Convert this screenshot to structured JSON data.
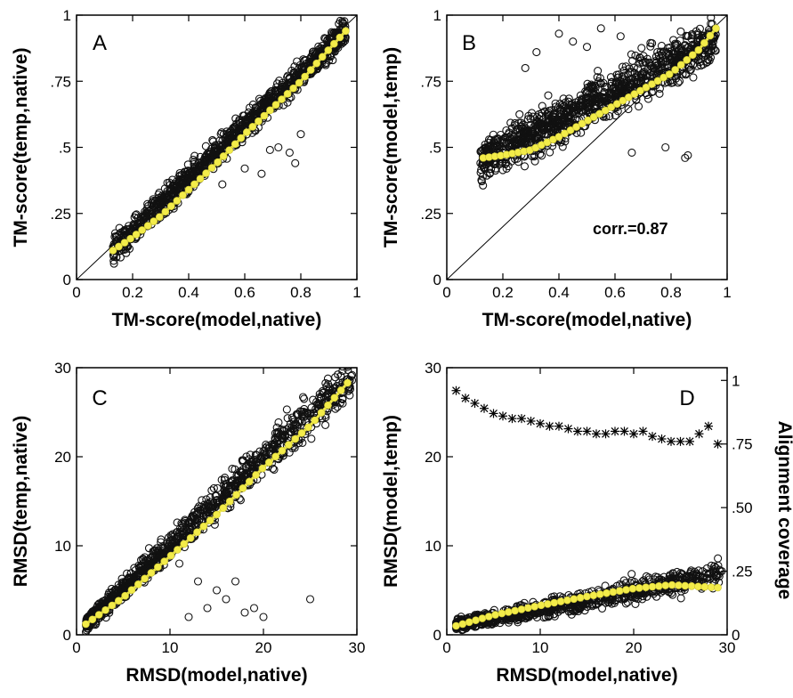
{
  "colors": {
    "points": "#111111",
    "trend": "#f3ec4a",
    "frame": "#000000"
  },
  "chart_data": [
    {
      "panel": "A",
      "type": "scatter",
      "label": "A",
      "xlabel": "TM-score(model,native)",
      "ylabel": "TM-score(temp,native)",
      "xlim": [
        0,
        1
      ],
      "ylim": [
        0,
        1
      ],
      "xticks": [
        "0",
        "0.2",
        "0.4",
        "0.6",
        "0.8",
        "1"
      ],
      "yticks": [
        "0",
        ".25",
        ".5",
        ".75",
        "1"
      ],
      "xtick_values": [
        0,
        0.2,
        0.4,
        0.6,
        0.8,
        1
      ],
      "ytick_values": [
        0,
        0.25,
        0.5,
        0.75,
        1
      ],
      "diagonal": true,
      "scatter_cloud": {
        "x_range": [
          0.13,
          0.96
        ],
        "trend_slope": 1.0,
        "trend_intercept": -0.02,
        "spread": 0.05,
        "outliers": [
          [
            0.72,
            0.5
          ],
          [
            0.76,
            0.48
          ],
          [
            0.69,
            0.49
          ],
          [
            0.52,
            0.36
          ],
          [
            0.6,
            0.42
          ],
          [
            0.8,
            0.55
          ],
          [
            0.78,
            0.44
          ],
          [
            0.66,
            0.4
          ]
        ]
      },
      "trend_line": {
        "x": [
          0.13,
          0.2,
          0.3,
          0.4,
          0.5,
          0.6,
          0.7,
          0.8,
          0.9,
          0.96
        ],
        "y": [
          0.11,
          0.16,
          0.24,
          0.34,
          0.44,
          0.55,
          0.65,
          0.75,
          0.87,
          0.94
        ]
      }
    },
    {
      "panel": "B",
      "type": "scatter",
      "label": "B",
      "xlabel": "TM-score(model,native)",
      "ylabel": "TM-score(model,temp)",
      "annotation": "corr.=0.87",
      "xlim": [
        0,
        1
      ],
      "ylim": [
        0,
        1
      ],
      "xticks": [
        "0",
        "0.2",
        "0.4",
        "0.6",
        "0.8",
        "1"
      ],
      "yticks": [
        "0",
        ".25",
        ".5",
        ".75",
        "1"
      ],
      "xtick_values": [
        0,
        0.2,
        0.4,
        0.6,
        0.8,
        1
      ],
      "ytick_values": [
        0,
        0.25,
        0.5,
        0.75,
        1
      ],
      "diagonal": true,
      "scatter_cloud": {
        "x_range": [
          0.12,
          0.96
        ],
        "trend_slope": 0.55,
        "trend_intercept": 0.38,
        "spread": 0.08,
        "outliers": [
          [
            0.4,
            0.93
          ],
          [
            0.45,
            0.9
          ],
          [
            0.32,
            0.86
          ],
          [
            0.28,
            0.8
          ],
          [
            0.55,
            0.95
          ],
          [
            0.5,
            0.88
          ],
          [
            0.62,
            0.92
          ],
          [
            0.85,
            0.46
          ],
          [
            0.86,
            0.47
          ],
          [
            0.78,
            0.5
          ],
          [
            0.66,
            0.48
          ]
        ]
      },
      "trend_line": {
        "x": [
          0.13,
          0.2,
          0.3,
          0.4,
          0.5,
          0.6,
          0.7,
          0.8,
          0.9,
          0.96
        ],
        "y": [
          0.46,
          0.47,
          0.49,
          0.54,
          0.6,
          0.66,
          0.72,
          0.78,
          0.87,
          0.95
        ]
      }
    },
    {
      "panel": "C",
      "type": "scatter",
      "label": "C",
      "xlabel": "RMSD(model,native)",
      "ylabel": "RMSD(temp,native)",
      "xlim": [
        0,
        30
      ],
      "ylim": [
        0,
        30
      ],
      "xticks": [
        "0",
        "10",
        "20",
        "30"
      ],
      "yticks": [
        "0",
        "10",
        "20",
        "30"
      ],
      "xtick_values": [
        0,
        10,
        20,
        30
      ],
      "ytick_values": [
        0,
        10,
        20,
        30
      ],
      "diagonal": false,
      "scatter_cloud": {
        "x_range": [
          1,
          29.5
        ],
        "trend_slope": 0.98,
        "trend_intercept": 0.2,
        "spread": 1.3,
        "outliers": [
          [
            12,
            2
          ],
          [
            14,
            3
          ],
          [
            16,
            4
          ],
          [
            18,
            2.5
          ],
          [
            20,
            2
          ],
          [
            25,
            4
          ],
          [
            13,
            6
          ],
          [
            15,
            5
          ],
          [
            11,
            8
          ],
          [
            17,
            6
          ],
          [
            19,
            3
          ]
        ]
      },
      "trend_line": {
        "x": [
          1,
          5,
          10,
          15,
          20,
          25,
          29
        ],
        "y": [
          1.2,
          4.2,
          8.8,
          13.5,
          18.8,
          23.5,
          28.3
        ]
      }
    },
    {
      "panel": "D",
      "type": "scatter",
      "label": "D",
      "xlabel": "RMSD(model,native)",
      "ylabel": "RMSD(model,temp)",
      "y2label": "Alignment coverage",
      "xlim": [
        0,
        30
      ],
      "ylim": [
        0,
        30
      ],
      "xticks": [
        "0",
        "10",
        "20",
        "30"
      ],
      "yticks": [
        "0",
        "10",
        "20",
        "30"
      ],
      "y2ticks": [
        "0",
        ".25",
        ".50",
        ".75",
        "1"
      ],
      "xtick_values": [
        0,
        10,
        20,
        30
      ],
      "ytick_values": [
        0,
        10,
        20,
        30
      ],
      "y2tick_values": [
        0,
        0.25,
        0.5,
        0.75,
        1
      ],
      "y2lim": [
        0,
        1.05
      ],
      "diagonal": false,
      "scatter_cloud": {
        "x_range": [
          1,
          29.5
        ],
        "trend_slope": 0.2,
        "trend_intercept": 0.9,
        "spread": 0.9,
        "outliers": []
      },
      "trend_line": {
        "x": [
          1,
          5,
          10,
          15,
          20,
          24,
          29
        ],
        "y": [
          1.0,
          2.2,
          3.3,
          4.3,
          5.2,
          5.6,
          5.3
        ]
      },
      "coverage_series": {
        "x": [
          1,
          2,
          3,
          4,
          5,
          6,
          7,
          8,
          9,
          10,
          11,
          12,
          13,
          14,
          15,
          16,
          17,
          18,
          19,
          20,
          21,
          22,
          23,
          24,
          25,
          26,
          27,
          28,
          29
        ],
        "y": [
          0.96,
          0.93,
          0.91,
          0.89,
          0.87,
          0.86,
          0.85,
          0.85,
          0.84,
          0.83,
          0.82,
          0.82,
          0.81,
          0.8,
          0.8,
          0.79,
          0.79,
          0.8,
          0.8,
          0.79,
          0.8,
          0.78,
          0.77,
          0.76,
          0.76,
          0.76,
          0.79,
          0.82,
          0.75
        ]
      }
    }
  ]
}
